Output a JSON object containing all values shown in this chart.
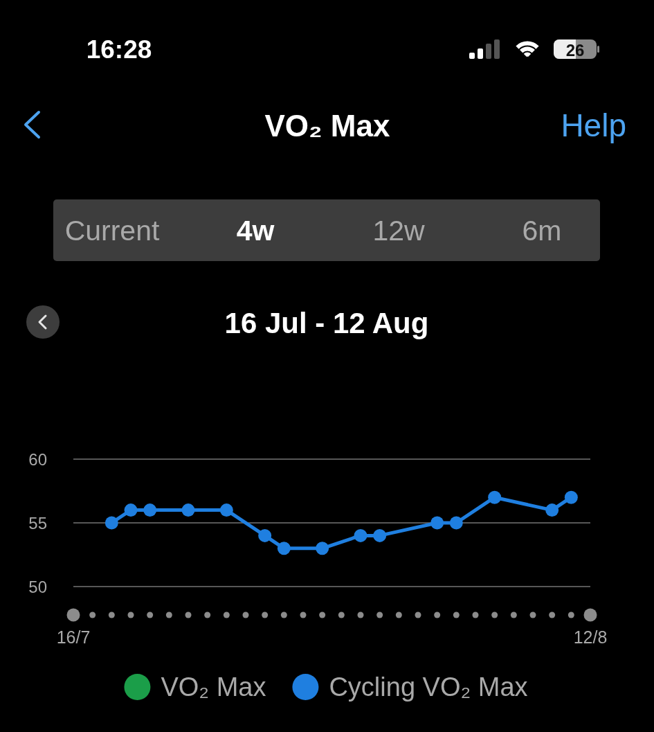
{
  "chart_data": {
    "type": "line",
    "title": "VO₂ Max",
    "subtitle": "16 Jul - 12 Aug",
    "annotations": [
      "16:28",
      "26",
      "Help",
      "Current",
      "4w",
      "12w",
      "6m"
    ],
    "x": [
      "--07-18",
      "--07-19",
      "--07-20",
      "--07-22",
      "--07-24",
      "--07-26",
      "--07-27",
      "--07-29",
      "--07-31",
      "--08-01",
      "--08-04",
      "--08-05",
      "--08-07",
      "--08-10",
      "--08-11"
    ],
    "series": [
      {
        "name": "VO₂ Max",
        "color": "#1b9e49",
        "values": [
          null,
          null,
          null,
          null,
          null,
          null,
          null,
          null,
          null,
          null,
          null,
          null,
          null,
          null,
          null
        ]
      },
      {
        "name": "Cycling VO₂ Max",
        "color": "#1f7fe0",
        "values": [
          55,
          56,
          56,
          56,
          56,
          54,
          53,
          53,
          54,
          54,
          55,
          55,
          57,
          56,
          57
        ]
      }
    ],
    "xlim": [
      "--07-16",
      "--08-12"
    ],
    "xticks": [
      {
        "value": "--07-16",
        "label": "16/7"
      },
      {
        "value": "--08-12",
        "label": "12/8"
      }
    ],
    "ylim": [
      50,
      60
    ],
    "yticks": [
      50,
      55,
      60
    ],
    "grid": "y",
    "legend": "bottom",
    "marker": "circle",
    "line_style": "solid"
  }
}
